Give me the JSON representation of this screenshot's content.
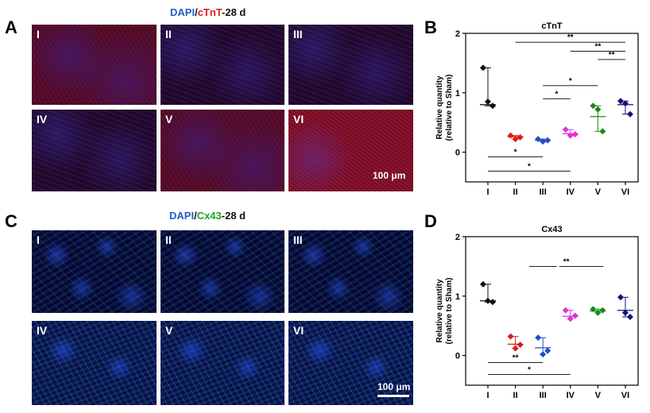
{
  "panels": {
    "A": {
      "letter": "A",
      "title_dapi": "DAPI",
      "title_sep": "/",
      "title_marker": "cTnT",
      "title_day": "-28 d",
      "tiles": [
        "I",
        "II",
        "III",
        "IV",
        "V",
        "VI"
      ],
      "scale": "100 μm"
    },
    "B": {
      "letter": "B"
    },
    "C": {
      "letter": "C",
      "title_dapi": "DAPI",
      "title_sep": "/",
      "title_marker": "Cx43",
      "title_day": "-28 d",
      "tiles": [
        "I",
        "II",
        "III",
        "IV",
        "V",
        "VI"
      ],
      "scale": "100 μm"
    },
    "D": {
      "letter": "D"
    }
  },
  "colors": {
    "dapi": "#1f5fc4",
    "ctnt": "#d61c1c",
    "cx43": "#1ea31e",
    "groups": [
      "#111111",
      "#e01b1b",
      "#1f4fc8",
      "#e22ee0",
      "#188a18",
      "#12137a"
    ]
  },
  "chart_data": [
    {
      "type": "scatter",
      "title": "cTnT",
      "ylabel": "Relative quantity (relative to Sham)",
      "categories": [
        "I",
        "II",
        "III",
        "IV",
        "V",
        "VI"
      ],
      "ylim": [
        -0.5,
        2
      ],
      "yticks": [
        "-0",
        "1",
        "2"
      ],
      "yticks_display": [
        "0",
        "1",
        "2"
      ],
      "points": [
        [
          1.42,
          0.85,
          0.78
        ],
        [
          0.28,
          0.22,
          0.25
        ],
        [
          0.22,
          0.18,
          0.2
        ],
        [
          0.38,
          0.28,
          0.3
        ],
        [
          0.78,
          0.72,
          0.35
        ],
        [
          0.86,
          0.82,
          0.64
        ]
      ],
      "centers": [
        0.8,
        0.26,
        0.2,
        0.31,
        0.6,
        0.8
      ],
      "brackets": [
        {
          "from": 1,
          "to": 5,
          "y": 1.85,
          "label": "**"
        },
        {
          "from": 3,
          "to": 5,
          "y": 1.7,
          "label": "**"
        },
        {
          "from": 4,
          "to": 5,
          "y": 1.56,
          "label": "**"
        },
        {
          "from": 2,
          "to": 4,
          "y": 1.12,
          "label": "*"
        },
        {
          "from": 2,
          "to": 3,
          "y": 0.9,
          "label": "*"
        },
        {
          "from": 0,
          "to": 2,
          "y": -0.08,
          "label": "*"
        },
        {
          "from": 0,
          "to": 3,
          "y": -0.32,
          "label": "*"
        }
      ]
    },
    {
      "type": "scatter",
      "title": "Cx43",
      "ylabel": "Relative quantity (relative to Sham)",
      "categories": [
        "I",
        "II",
        "III",
        "IV",
        "V",
        "VI"
      ],
      "ylim": [
        -0.5,
        2
      ],
      "yticks_display": [
        "0",
        "1",
        "2"
      ],
      "points": [
        [
          1.2,
          0.92,
          0.9
        ],
        [
          0.32,
          0.12,
          0.18
        ],
        [
          0.3,
          0.02,
          0.08
        ],
        [
          0.76,
          0.62,
          0.67
        ],
        [
          0.78,
          0.72,
          0.76
        ],
        [
          0.98,
          0.72,
          0.65
        ]
      ],
      "centers": [
        0.92,
        0.19,
        0.13,
        0.66,
        0.75,
        0.76
      ],
      "brackets": [
        {
          "from": 1,
          "to": 4,
          "y": 1.5,
          "label": "**",
          "split": [
            [
              1.5,
              2.5
            ],
            [
              2.6,
              4.2
            ]
          ]
        },
        {
          "from": 0,
          "to": 2,
          "y": -0.12,
          "label": "**"
        },
        {
          "from": 0,
          "to": 3,
          "y": -0.32,
          "label": "*"
        }
      ]
    }
  ]
}
